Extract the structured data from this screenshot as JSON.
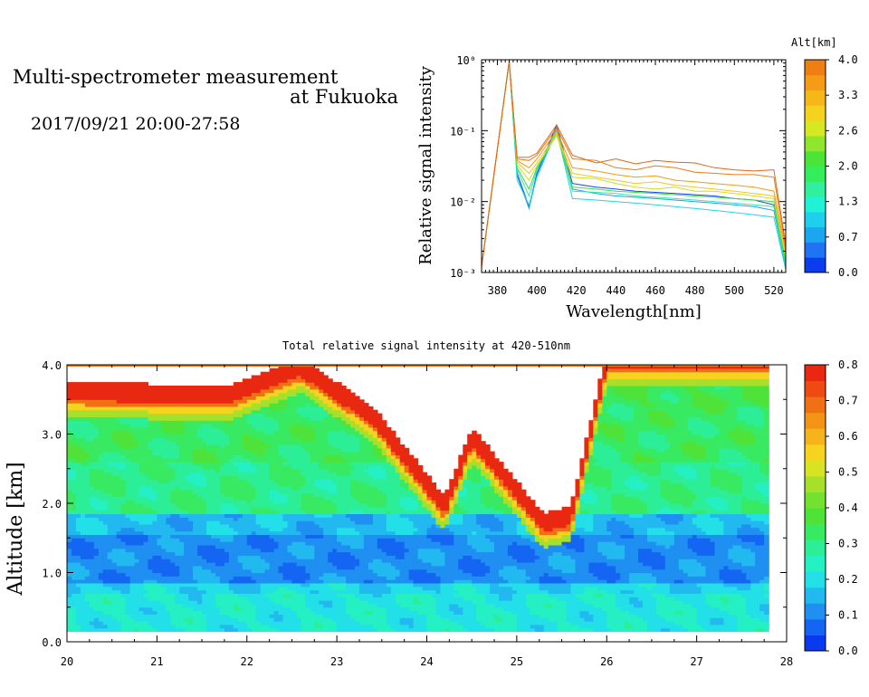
{
  "header": {
    "title_line1": "Multi-spectrometer measurement",
    "title_line2": "at Fukuoka",
    "subtitle": "2017/09/21 20:00-27:58"
  },
  "chart_data": [
    {
      "type": "line",
      "title": "",
      "xlabel": "Wavelength[nm]",
      "ylabel": "Relative signal intensity",
      "yscale": "log",
      "xlim": [
        372,
        526
      ],
      "ylim": [
        0.001,
        1
      ],
      "x_ticks": [
        "380",
        "400",
        "420",
        "440",
        "460",
        "480",
        "500",
        "520"
      ],
      "y_ticks": [
        "10⁻³",
        "10⁻²",
        "10⁻¹",
        "10⁰"
      ],
      "x": [
        372,
        386,
        390,
        396,
        400,
        410,
        418,
        430,
        440,
        450,
        460,
        470,
        480,
        490,
        500,
        510,
        520,
        526
      ],
      "colorbar": {
        "title": "Alt[km]",
        "tick_labels": [
          "0.0",
          "0.7",
          "1.3",
          "2.0",
          "2.6",
          "3.3",
          "4.0"
        ],
        "colors": [
          "#0b3cf0",
          "#1e74f2",
          "#1ca6f0",
          "#1fd0ee",
          "#20f2d6",
          "#30f0a0",
          "#33ee5a",
          "#4be53a",
          "#8fe62c",
          "#d6e822",
          "#f4d21e",
          "#f6b818",
          "#f49c16",
          "#f07f13"
        ]
      },
      "series": [
        {
          "color": "#1146e6",
          "values": [
            0.0012,
            0.95,
            0.025,
            0.0085,
            0.025,
            0.12,
            0.018,
            0.016,
            0.015,
            0.014,
            0.0135,
            0.013,
            0.0125,
            0.012,
            0.011,
            0.0105,
            0.009,
            0.0015
          ]
        },
        {
          "color": "#1ea0e8",
          "values": [
            0.0012,
            0.95,
            0.023,
            0.008,
            0.023,
            0.11,
            0.015,
            0.013,
            0.012,
            0.0115,
            0.011,
            0.0105,
            0.01,
            0.0095,
            0.009,
            0.0085,
            0.0075,
            0.0012
          ]
        },
        {
          "color": "#22d6e0",
          "values": [
            0.0012,
            0.95,
            0.02,
            0.009,
            0.022,
            0.1,
            0.011,
            0.0105,
            0.01,
            0.0095,
            0.009,
            0.0085,
            0.008,
            0.0075,
            0.007,
            0.0065,
            0.006,
            0.0011
          ]
        },
        {
          "color": "#2fe9a8",
          "values": [
            0.0012,
            0.95,
            0.028,
            0.012,
            0.028,
            0.1,
            0.014,
            0.0135,
            0.013,
            0.012,
            0.0115,
            0.011,
            0.0105,
            0.01,
            0.0095,
            0.009,
            0.0085,
            0.0013
          ]
        },
        {
          "color": "#3cdd4a",
          "values": [
            0.0012,
            0.95,
            0.03,
            0.015,
            0.03,
            0.09,
            0.016,
            0.015,
            0.014,
            0.0135,
            0.013,
            0.0125,
            0.012,
            0.0115,
            0.011,
            0.0105,
            0.01,
            0.0014
          ]
        },
        {
          "color": "#c8e21c",
          "values": [
            0.0012,
            0.95,
            0.033,
            0.02,
            0.032,
            0.085,
            0.022,
            0.021,
            0.018,
            0.016,
            0.015,
            0.016,
            0.014,
            0.014,
            0.013,
            0.012,
            0.011,
            0.0016
          ]
        },
        {
          "color": "#f3c51c",
          "values": [
            0.0012,
            0.95,
            0.036,
            0.025,
            0.035,
            0.09,
            0.025,
            0.022,
            0.02,
            0.018,
            0.019,
            0.017,
            0.016,
            0.015,
            0.014,
            0.013,
            0.012,
            0.0018
          ]
        },
        {
          "color": "#f39a16",
          "values": [
            0.0012,
            0.95,
            0.038,
            0.03,
            0.04,
            0.1,
            0.03,
            0.027,
            0.024,
            0.022,
            0.023,
            0.02,
            0.019,
            0.018,
            0.017,
            0.016,
            0.014,
            0.002
          ]
        },
        {
          "color": "#ee7a12",
          "values": [
            0.0012,
            0.95,
            0.04,
            0.038,
            0.045,
            0.11,
            0.04,
            0.038,
            0.03,
            0.028,
            0.032,
            0.03,
            0.026,
            0.025,
            0.024,
            0.024,
            0.022,
            0.0022
          ]
        },
        {
          "color": "#e86410",
          "values": [
            0.0012,
            0.95,
            0.042,
            0.042,
            0.048,
            0.12,
            0.045,
            0.035,
            0.04,
            0.034,
            0.038,
            0.036,
            0.035,
            0.03,
            0.028,
            0.027,
            0.028,
            0.0025
          ]
        }
      ]
    },
    {
      "type": "heatmap",
      "title": "Total relative signal intensity at 420-510nm",
      "xlabel": "",
      "ylabel": "Altitude [km]",
      "xlim": [
        20,
        28
      ],
      "ylim": [
        0.0,
        4.0
      ],
      "x_ticks": [
        "20",
        "21",
        "22",
        "23",
        "24",
        "25",
        "26",
        "27",
        "28"
      ],
      "y_ticks": [
        "0.0",
        "1.0",
        "2.0",
        "3.0",
        "4.0"
      ],
      "colorbar": {
        "tick_labels": [
          "0.0",
          "0.1",
          "0.2",
          "0.3",
          "0.4",
          "0.5",
          "0.6",
          "0.7",
          "0.8"
        ],
        "colors": [
          "#0a3af0",
          "#1466f2",
          "#1f8ff2",
          "#22b8f0",
          "#22dfe8",
          "#24f0c4",
          "#2cee96",
          "#38ea62",
          "#4fe33a",
          "#74e030",
          "#a6e02a",
          "#d8e422",
          "#f5d31e",
          "#f5b41a",
          "#f39416",
          "#f07014",
          "#ee4a12",
          "#e82810"
        ]
      },
      "data_x_end": 27.8,
      "data_y_start": 0.15,
      "cloud_base_km": [
        {
          "t": 20.0,
          "z": 3.55
        },
        {
          "t": 21.8,
          "z": 3.5
        },
        {
          "t": 22.6,
          "z": 3.9
        },
        {
          "t": 23.4,
          "z": 3.2
        },
        {
          "t": 24.2,
          "z": 1.9
        },
        {
          "t": 24.5,
          "z": 2.9
        },
        {
          "t": 25.3,
          "z": 1.65
        },
        {
          "t": 25.6,
          "z": 1.75
        },
        {
          "t": 26.0,
          "z": 4.0
        }
      ],
      "layers": [
        {
          "z_from": 0.15,
          "z_to": 0.7,
          "value": 0.22
        },
        {
          "z_from": 0.7,
          "z_to": 0.85,
          "value": 0.19
        },
        {
          "z_from": 0.85,
          "z_to": 1.55,
          "value": 0.11
        },
        {
          "z_from": 1.55,
          "z_to": 1.85,
          "value": 0.16
        },
        {
          "z_from": 1.85,
          "z_to": 2.6,
          "value": 0.3
        },
        {
          "z_from": 2.6,
          "z_to": 3.4,
          "value": 0.33
        }
      ]
    }
  ]
}
